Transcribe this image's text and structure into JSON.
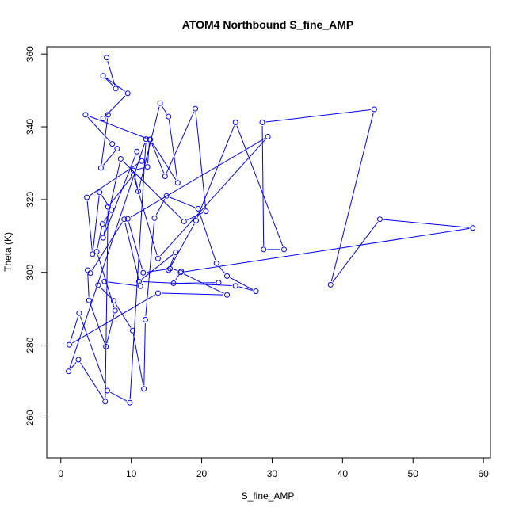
{
  "chart_data": {
    "type": "line",
    "title": "ATOM4 Northbound S_fine_AMP",
    "xlabel": "S_fine_AMP",
    "ylabel": "Theta (K)",
    "xlim": [
      -2,
      61
    ],
    "ylim": [
      249,
      362
    ],
    "xticks": [
      "0",
      "10",
      "20",
      "30",
      "40",
      "50",
      "60"
    ],
    "yticks": [
      "260",
      "280",
      "300",
      "320",
      "340",
      "360"
    ],
    "grid": false,
    "legend": "none",
    "series_color": "#0000ff",
    "marker": "open-circle",
    "x": [
      6.5,
      7.8,
      6.0,
      9.5,
      6.0,
      6.7,
      5.7,
      8.0,
      7.3,
      3.5,
      12.6,
      12.3,
      10.3,
      11.0,
      14.1,
      15.3,
      16.6,
      12.7,
      14.8,
      19.1,
      20.6,
      17.5,
      8.5,
      6.0,
      10.8,
      11.5,
      3.7,
      4.5,
      5.5,
      7.2,
      5.9,
      5.1,
      7.7,
      6.4,
      4.0,
      3.8,
      4.2,
      9.0,
      11.3,
      6.2,
      5.3,
      7.5,
      10.2,
      11.8,
      12.0,
      13.3,
      15.0,
      19.5,
      22.1,
      23.6,
      27.7,
      24.8,
      11.1,
      16.3,
      15.3,
      19.2,
      24.8,
      31.7,
      28.8,
      28.6,
      44.5,
      38.3,
      45.3,
      58.5,
      17.0,
      23.6,
      13.8,
      1.2,
      2.6,
      6.6,
      9.8,
      12.1,
      1.1,
      2.5,
      6.3,
      6.7,
      10.3,
      13.8,
      29.4,
      9.5,
      11.7,
      15.5,
      17.1,
      16.0,
      22.4
    ],
    "y": [
      359.0,
      350.5,
      354.0,
      349.2,
      342.3,
      343.3,
      328.7,
      334.0,
      335.3,
      343.3,
      336.5,
      329.0,
      328.0,
      322.3,
      346.5,
      342.8,
      324.6,
      336.5,
      326.4,
      345.0,
      316.8,
      314.0,
      331.2,
      309.5,
      333.2,
      330.6,
      320.6,
      305.0,
      322.0,
      317.1,
      313.3,
      305.7,
      289.5,
      279.6,
      292.3,
      300.6,
      299.8,
      314.6,
      296.2,
      297.5,
      296.5,
      292.2,
      284.0,
      268.0,
      287.0,
      314.9,
      321.0,
      317.5,
      302.5,
      299.0,
      294.8,
      296.3,
      297.5,
      305.5,
      300.6,
      314.2,
      341.2,
      306.3,
      306.3,
      341.2,
      344.8,
      296.6,
      314.6,
      312.2,
      300.0,
      293.8,
      294.3,
      280.1,
      288.8,
      267.5,
      264.2,
      336.6,
      272.8,
      276.0,
      264.5,
      318.0,
      326.8,
      303.8,
      337.3,
      314.7,
      299.9,
      301.0,
      300.3,
      297.0,
      297.2
    ]
  }
}
